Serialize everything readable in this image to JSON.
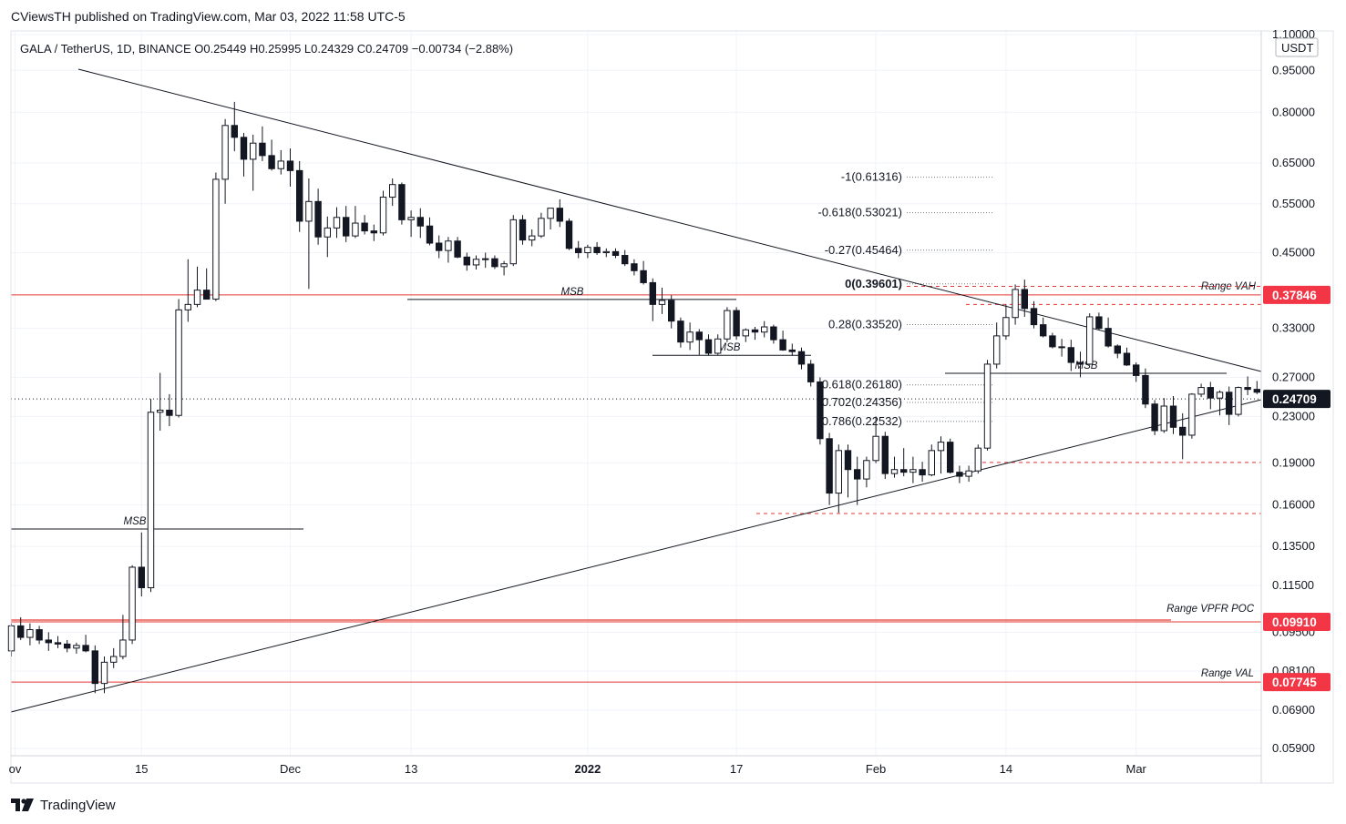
{
  "header": {
    "publisher_line": "CViewsTH published on TradingView.com, Mar 03, 2022 11:58 UTC-5",
    "symbol_line": "GALA / TetherUS, 1D, BINANCE  O0.25449  H0.25995  L0.24329  C0.24709  −0.00734  (−2.88%)"
  },
  "footer": {
    "brand": "TradingView",
    "logo_icon": "tradingview-logo-icon"
  },
  "colors": {
    "red_level": "#e53935",
    "label_red_bg": "#f23645",
    "black": "#131722",
    "grid": "#f0f3fa"
  },
  "chart_data": {
    "type": "candlestick",
    "title": "GALA / TetherUS, 1D, BINANCE",
    "currency_label": "USDT",
    "y_scale": "log",
    "y_ticks": [
      "1.10000",
      "0.95000",
      "0.80000",
      "0.65000",
      "0.55000",
      "0.45000",
      "0.33000",
      "0.27000",
      "0.23000",
      "0.19000",
      "0.16000",
      "0.13500",
      "0.11500",
      "0.09500",
      "0.08100",
      "0.06900",
      "0.05900"
    ],
    "x_ticks": [
      {
        "label": "ov",
        "bold": false
      },
      {
        "label": "15",
        "bold": false
      },
      {
        "label": "Dec",
        "bold": false
      },
      {
        "label": "13",
        "bold": false
      },
      {
        "label": "2022",
        "bold": true
      },
      {
        "label": "17",
        "bold": false
      },
      {
        "label": "Feb",
        "bold": false
      },
      {
        "label": "14",
        "bold": false
      },
      {
        "label": "Mar",
        "bold": false
      }
    ],
    "price_labels": [
      {
        "value": "0.37846",
        "price": 0.37846,
        "style": "red"
      },
      {
        "value": "0.24709",
        "price": 0.24709,
        "style": "black"
      },
      {
        "value": "0.09910",
        "price": 0.0991,
        "style": "red"
      },
      {
        "value": "0.07745",
        "price": 0.07745,
        "style": "red"
      }
    ],
    "horizontal_levels": [
      {
        "name": "Range VAH",
        "price": 0.37846,
        "label": "Range VAH"
      },
      {
        "name": "Range VPFR POC",
        "price": 0.0991,
        "label": "Range VPFR POC"
      },
      {
        "name": "Range VAL",
        "price": 0.07745,
        "label": "Range VAL"
      }
    ],
    "msb_labels": [
      "MSB",
      "MSB",
      "MSB",
      "MSB"
    ],
    "fib_levels": [
      {
        "label": "-1(0.61316)",
        "price": 0.61316
      },
      {
        "label": "-0.618(0.53021)",
        "price": 0.53021
      },
      {
        "label": "-0.27(0.45464)",
        "price": 0.45464
      },
      {
        "label": "0(0.39601)",
        "price": 0.39601
      },
      {
        "label": "0.28(0.33520)",
        "price": 0.3352
      },
      {
        "label": "0.618(0.26180)",
        "price": 0.2618
      },
      {
        "label": "0.702(0.24356)",
        "price": 0.24356
      },
      {
        "label": "0.786(0.22532)",
        "price": 0.22532
      }
    ],
    "last_close": 0.24709,
    "candles": [
      [
        0.088,
        0.0985,
        0.086,
        0.0975
      ],
      [
        0.0975,
        0.101,
        0.092,
        0.093
      ],
      [
        0.093,
        0.0985,
        0.09,
        0.096
      ],
      [
        0.096,
        0.0975,
        0.0905,
        0.092
      ],
      [
        0.092,
        0.095,
        0.088,
        0.091
      ],
      [
        0.091,
        0.0935,
        0.089,
        0.0905
      ],
      [
        0.0905,
        0.092,
        0.0875,
        0.089
      ],
      [
        0.089,
        0.091,
        0.087,
        0.09
      ],
      [
        0.09,
        0.094,
        0.0875,
        0.088
      ],
      [
        0.088,
        0.09,
        0.074,
        0.077
      ],
      [
        0.077,
        0.086,
        0.074,
        0.084
      ],
      [
        0.084,
        0.089,
        0.082,
        0.086
      ],
      [
        0.086,
        0.102,
        0.085,
        0.092
      ],
      [
        0.092,
        0.125,
        0.0905,
        0.124
      ],
      [
        0.124,
        0.143,
        0.11,
        0.114
      ],
      [
        0.114,
        0.247,
        0.112,
        0.234
      ],
      [
        0.234,
        0.275,
        0.217,
        0.236
      ],
      [
        0.236,
        0.252,
        0.221,
        0.231
      ],
      [
        0.231,
        0.372,
        0.229,
        0.356
      ],
      [
        0.356,
        0.438,
        0.339,
        0.364
      ],
      [
        0.364,
        0.425,
        0.36,
        0.386
      ],
      [
        0.386,
        0.422,
        0.372,
        0.372
      ],
      [
        0.372,
        0.625,
        0.369,
        0.608
      ],
      [
        0.608,
        0.778,
        0.55,
        0.758
      ],
      [
        0.758,
        0.835,
        0.682,
        0.722
      ],
      [
        0.722,
        0.735,
        0.615,
        0.66
      ],
      [
        0.66,
        0.73,
        0.58,
        0.705
      ],
      [
        0.705,
        0.755,
        0.655,
        0.67
      ],
      [
        0.67,
        0.715,
        0.63,
        0.635
      ],
      [
        0.635,
        0.685,
        0.62,
        0.655
      ],
      [
        0.655,
        0.69,
        0.59,
        0.63
      ],
      [
        0.63,
        0.655,
        0.49,
        0.512
      ],
      [
        0.512,
        0.61,
        0.388,
        0.555
      ],
      [
        0.555,
        0.585,
        0.465,
        0.48
      ],
      [
        0.48,
        0.522,
        0.442,
        0.498
      ],
      [
        0.498,
        0.542,
        0.478,
        0.52
      ],
      [
        0.52,
        0.545,
        0.47,
        0.482
      ],
      [
        0.482,
        0.545,
        0.478,
        0.508
      ],
      [
        0.508,
        0.525,
        0.485,
        0.492
      ],
      [
        0.492,
        0.505,
        0.472,
        0.488
      ],
      [
        0.488,
        0.58,
        0.483,
        0.565
      ],
      [
        0.565,
        0.61,
        0.545,
        0.595
      ],
      [
        0.595,
        0.6,
        0.505,
        0.515
      ],
      [
        0.515,
        0.535,
        0.48,
        0.52
      ],
      [
        0.52,
        0.54,
        0.478,
        0.502
      ],
      [
        0.502,
        0.52,
        0.464,
        0.468
      ],
      [
        0.468,
        0.483,
        0.44,
        0.454
      ],
      [
        0.454,
        0.48,
        0.432,
        0.472
      ],
      [
        0.472,
        0.48,
        0.44,
        0.442
      ],
      [
        0.442,
        0.45,
        0.418,
        0.428
      ],
      [
        0.428,
        0.445,
        0.42,
        0.438
      ],
      [
        0.438,
        0.45,
        0.423,
        0.439
      ],
      [
        0.439,
        0.445,
        0.421,
        0.425
      ],
      [
        0.425,
        0.435,
        0.41,
        0.43
      ],
      [
        0.43,
        0.525,
        0.426,
        0.515
      ],
      [
        0.515,
        0.525,
        0.465,
        0.474
      ],
      [
        0.474,
        0.495,
        0.462,
        0.482
      ],
      [
        0.482,
        0.53,
        0.478,
        0.518
      ],
      [
        0.518,
        0.54,
        0.495,
        0.54
      ],
      [
        0.54,
        0.56,
        0.5,
        0.512
      ],
      [
        0.512,
        0.518,
        0.455,
        0.458
      ],
      [
        0.458,
        0.472,
        0.44,
        0.45
      ],
      [
        0.45,
        0.465,
        0.44,
        0.46
      ],
      [
        0.46,
        0.47,
        0.446,
        0.45
      ],
      [
        0.45,
        0.458,
        0.442,
        0.452
      ],
      [
        0.452,
        0.458,
        0.44,
        0.445
      ],
      [
        0.445,
        0.455,
        0.426,
        0.43
      ],
      [
        0.43,
        0.438,
        0.41,
        0.418
      ],
      [
        0.418,
        0.435,
        0.395,
        0.398
      ],
      [
        0.398,
        0.405,
        0.34,
        0.364
      ],
      [
        0.364,
        0.39,
        0.35,
        0.37
      ],
      [
        0.37,
        0.378,
        0.33,
        0.34
      ],
      [
        0.34,
        0.345,
        0.305,
        0.312
      ],
      [
        0.312,
        0.338,
        0.302,
        0.325
      ],
      [
        0.325,
        0.329,
        0.296,
        0.315
      ],
      [
        0.315,
        0.322,
        0.295,
        0.298
      ],
      [
        0.298,
        0.322,
        0.296,
        0.316
      ],
      [
        0.316,
        0.36,
        0.312,
        0.355
      ],
      [
        0.355,
        0.36,
        0.315,
        0.32
      ],
      [
        0.32,
        0.33,
        0.312,
        0.328
      ],
      [
        0.328,
        0.332,
        0.315,
        0.325
      ],
      [
        0.325,
        0.34,
        0.318,
        0.332
      ],
      [
        0.332,
        0.335,
        0.31,
        0.315
      ],
      [
        0.315,
        0.327,
        0.301,
        0.302
      ],
      [
        0.302,
        0.31,
        0.295,
        0.3
      ],
      [
        0.3,
        0.305,
        0.279,
        0.285
      ],
      [
        0.285,
        0.29,
        0.26,
        0.265
      ],
      [
        0.265,
        0.27,
        0.205,
        0.21
      ],
      [
        0.21,
        0.215,
        0.16,
        0.168
      ],
      [
        0.168,
        0.205,
        0.155,
        0.2
      ],
      [
        0.2,
        0.205,
        0.165,
        0.185
      ],
      [
        0.185,
        0.195,
        0.16,
        0.178
      ],
      [
        0.178,
        0.195,
        0.172,
        0.192
      ],
      [
        0.192,
        0.23,
        0.19,
        0.212
      ],
      [
        0.212,
        0.216,
        0.178,
        0.182
      ],
      [
        0.182,
        0.195,
        0.179,
        0.185
      ],
      [
        0.185,
        0.202,
        0.18,
        0.183
      ],
      [
        0.183,
        0.195,
        0.175,
        0.185
      ],
      [
        0.185,
        0.191,
        0.176,
        0.181
      ],
      [
        0.181,
        0.205,
        0.18,
        0.2
      ],
      [
        0.2,
        0.212,
        0.182,
        0.207
      ],
      [
        0.207,
        0.21,
        0.182,
        0.183
      ],
      [
        0.183,
        0.188,
        0.175,
        0.18
      ],
      [
        0.18,
        0.188,
        0.176,
        0.184
      ],
      [
        0.184,
        0.205,
        0.182,
        0.202
      ],
      [
        0.202,
        0.29,
        0.2,
        0.285
      ],
      [
        0.285,
        0.338,
        0.28,
        0.32
      ],
      [
        0.32,
        0.364,
        0.315,
        0.345
      ],
      [
        0.345,
        0.395,
        0.335,
        0.387
      ],
      [
        0.387,
        0.403,
        0.346,
        0.358
      ],
      [
        0.358,
        0.369,
        0.33,
        0.335
      ],
      [
        0.335,
        0.345,
        0.318,
        0.32
      ],
      [
        0.32,
        0.324,
        0.304,
        0.306
      ],
      [
        0.306,
        0.316,
        0.294,
        0.305
      ],
      [
        0.305,
        0.315,
        0.277,
        0.287
      ],
      [
        0.287,
        0.3,
        0.27,
        0.285
      ],
      [
        0.285,
        0.351,
        0.284,
        0.346
      ],
      [
        0.346,
        0.352,
        0.328,
        0.33
      ],
      [
        0.33,
        0.345,
        0.305,
        0.307
      ],
      [
        0.307,
        0.309,
        0.292,
        0.298
      ],
      [
        0.298,
        0.305,
        0.283,
        0.284
      ],
      [
        0.284,
        0.287,
        0.265,
        0.272
      ],
      [
        0.272,
        0.28,
        0.238,
        0.242
      ],
      [
        0.242,
        0.246,
        0.213,
        0.217
      ],
      [
        0.217,
        0.248,
        0.215,
        0.24
      ],
      [
        0.24,
        0.25,
        0.214,
        0.22
      ],
      [
        0.22,
        0.233,
        0.193,
        0.213
      ],
      [
        0.213,
        0.253,
        0.21,
        0.252
      ],
      [
        0.252,
        0.263,
        0.249,
        0.259
      ],
      [
        0.259,
        0.265,
        0.237,
        0.248
      ],
      [
        0.248,
        0.256,
        0.231,
        0.254
      ],
      [
        0.254,
        0.26,
        0.222,
        0.232
      ],
      [
        0.232,
        0.26,
        0.23,
        0.259
      ],
      [
        0.259,
        0.271,
        0.251,
        0.257
      ],
      [
        0.257,
        0.266,
        0.252,
        0.254
      ],
      [
        0.2545,
        0.26,
        0.2433,
        0.2471
      ]
    ]
  }
}
